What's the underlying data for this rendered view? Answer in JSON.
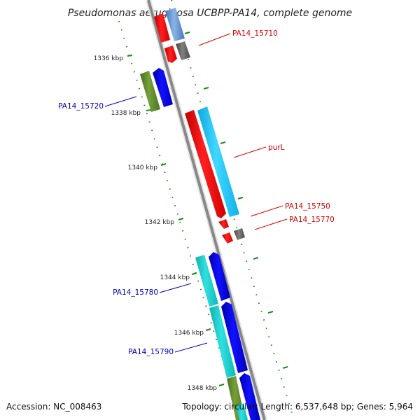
{
  "title": "Pseudomonas aeruginosa UCBPP-PA14, complete genome",
  "footer": {
    "accession": "Accession: NC_008463",
    "stats": "Topology: circular; Length: 6,537,648 bp; Genes: 5,964"
  },
  "ticks": [
    {
      "label": "1336 kbp"
    },
    {
      "label": "1338 kbp"
    },
    {
      "label": "1340 kbp"
    },
    {
      "label": "1342 kbp"
    },
    {
      "label": "1344 kbp"
    },
    {
      "label": "1346 kbp"
    },
    {
      "label": "1348 kbp"
    }
  ],
  "genes": [
    {
      "label": "PA14_15710",
      "color": "#dd0000"
    },
    {
      "label": "PA14_15720",
      "color": "#0000bb"
    },
    {
      "label": "purL",
      "color": "#dd0000"
    },
    {
      "label": "PA14_15750",
      "color": "#dd0000"
    },
    {
      "label": "PA14_15770",
      "color": "#dd0000"
    },
    {
      "label": "PA14_15780",
      "color": "#0000bb"
    },
    {
      "label": "PA14_15790",
      "color": "#0000bb"
    }
  ],
  "colors": {
    "backbone": "#888888",
    "tick": "#228822",
    "red_gene": "#ff1010",
    "blue_gene": "#0000dd",
    "cyan_gene": "#18c8f0",
    "teal_gene": "#1ccccc",
    "olive_gene": "#5a8a2a",
    "grey_gene": "#666666",
    "steel_gene": "#5a8ac8"
  }
}
